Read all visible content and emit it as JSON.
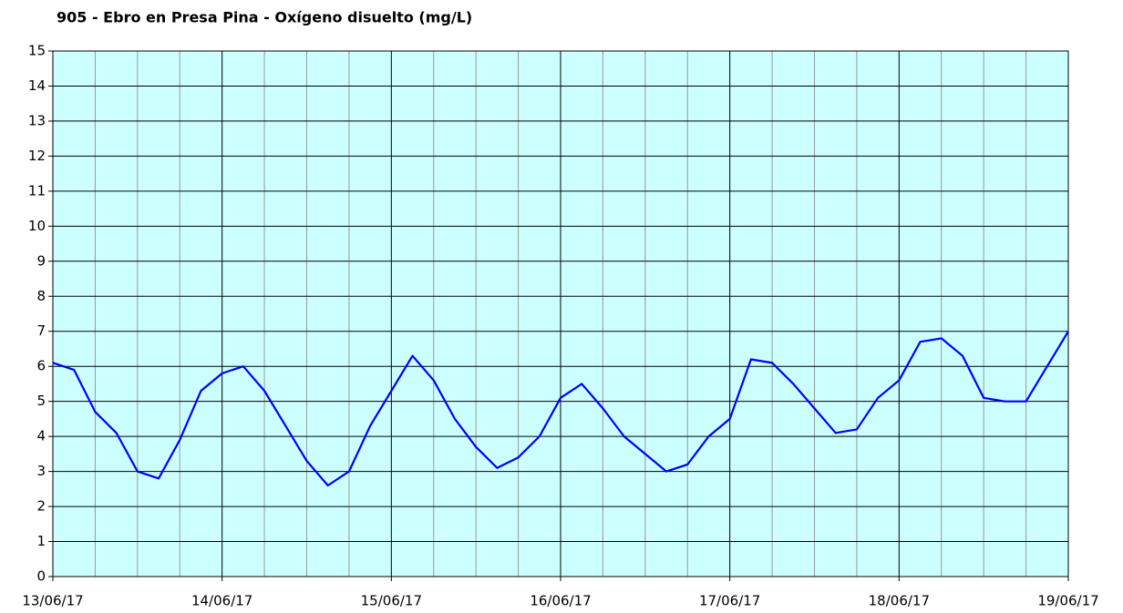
{
  "chart_data": {
    "type": "line",
    "title": "905 - Ebro en Presa Pina - Oxígeno disuelto (mg/L)",
    "x": [
      "2017-06-13T00:00",
      "2017-06-13T03:00",
      "2017-06-13T06:00",
      "2017-06-13T09:00",
      "2017-06-13T12:00",
      "2017-06-13T15:00",
      "2017-06-13T18:00",
      "2017-06-13T21:00",
      "2017-06-14T00:00",
      "2017-06-14T03:00",
      "2017-06-14T06:00",
      "2017-06-14T09:00",
      "2017-06-14T12:00",
      "2017-06-14T15:00",
      "2017-06-14T18:00",
      "2017-06-14T21:00",
      "2017-06-15T00:00",
      "2017-06-15T03:00",
      "2017-06-15T06:00",
      "2017-06-15T09:00",
      "2017-06-15T12:00",
      "2017-06-15T15:00",
      "2017-06-15T18:00",
      "2017-06-15T21:00",
      "2017-06-16T00:00",
      "2017-06-16T03:00",
      "2017-06-16T06:00",
      "2017-06-16T09:00",
      "2017-06-16T12:00",
      "2017-06-16T15:00",
      "2017-06-16T18:00",
      "2017-06-16T21:00",
      "2017-06-17T00:00",
      "2017-06-17T03:00",
      "2017-06-17T06:00",
      "2017-06-17T09:00",
      "2017-06-17T12:00",
      "2017-06-17T15:00",
      "2017-06-17T18:00",
      "2017-06-17T21:00",
      "2017-06-18T00:00",
      "2017-06-18T03:00",
      "2017-06-18T06:00",
      "2017-06-18T09:00",
      "2017-06-18T12:00",
      "2017-06-18T15:00",
      "2017-06-18T18:00",
      "2017-06-18T21:00",
      "2017-06-19T00:00"
    ],
    "series": [
      {
        "color": "#0000ff",
        "values": [
          6.1,
          5.9,
          4.7,
          4.1,
          3.0,
          2.8,
          3.9,
          5.3,
          5.8,
          6.0,
          5.3,
          4.3,
          3.3,
          2.6,
          3.0,
          4.3,
          5.3,
          6.3,
          5.6,
          4.5,
          3.7,
          3.1,
          3.4,
          4.0,
          5.1,
          5.5,
          4.8,
          4.0,
          3.5,
          3.0,
          3.2,
          4.0,
          4.5,
          6.2,
          6.1,
          5.5,
          4.8,
          4.1,
          4.2,
          5.1,
          5.6,
          6.7,
          6.8,
          6.3,
          5.1,
          5.0,
          5.0,
          6.0,
          7.0
        ]
      }
    ],
    "xlim": [
      "2017-06-13T00:00",
      "2017-06-19T00:00"
    ],
    "xticks": [
      {
        "value": "2017-06-13T00:00",
        "label": "13/06/17"
      },
      {
        "value": "2017-06-14T00:00",
        "label": "14/06/17"
      },
      {
        "value": "2017-06-15T00:00",
        "label": "15/06/17"
      },
      {
        "value": "2017-06-16T00:00",
        "label": "16/06/17"
      },
      {
        "value": "2017-06-17T00:00",
        "label": "17/06/17"
      },
      {
        "value": "2017-06-18T00:00",
        "label": "18/06/17"
      },
      {
        "value": "2017-06-19T00:00",
        "label": "19/06/17"
      }
    ],
    "xminor_ticks": [
      "2017-06-13T06:00",
      "2017-06-13T12:00",
      "2017-06-13T18:00",
      "2017-06-14T06:00",
      "2017-06-14T12:00",
      "2017-06-14T18:00",
      "2017-06-15T06:00",
      "2017-06-15T12:00",
      "2017-06-15T18:00",
      "2017-06-16T06:00",
      "2017-06-16T12:00",
      "2017-06-16T18:00",
      "2017-06-17T06:00",
      "2017-06-17T12:00",
      "2017-06-17T18:00",
      "2017-06-18T06:00",
      "2017-06-18T12:00",
      "2017-06-18T18:00"
    ],
    "ylim": [
      0,
      15
    ],
    "yticks": [
      0,
      1,
      2,
      3,
      4,
      5,
      6,
      7,
      8,
      9,
      10,
      11,
      12,
      13,
      14,
      15
    ],
    "grid": true,
    "plot_background": "#ccffff"
  }
}
